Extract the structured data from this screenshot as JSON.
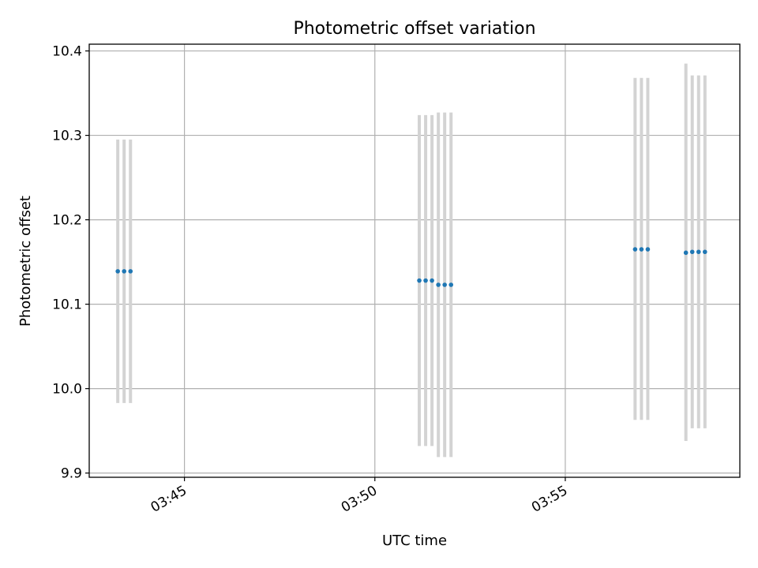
{
  "chart_data": {
    "type": "scatter",
    "title": "Photometric offset variation",
    "xlabel": "UTC time",
    "ylabel": "Photometric offset",
    "grid": true,
    "xlim": [
      "03:42:30",
      "03:59:35"
    ],
    "ylim": [
      9.895,
      10.408
    ],
    "xticks": [
      "03:45",
      "03:50",
      "03:55"
    ],
    "yticks": [
      9.9,
      10.0,
      10.1,
      10.2,
      10.3,
      10.4
    ],
    "colors": {
      "point": "#1f77b4",
      "errorbar": "#d3d3d3",
      "grid": "#b0b0b0"
    },
    "points": [
      {
        "x": "03:43:15",
        "y": 10.139,
        "ylow": 9.983,
        "yhigh": 10.295
      },
      {
        "x": "03:43:25",
        "y": 10.139,
        "ylow": 9.983,
        "yhigh": 10.295
      },
      {
        "x": "03:43:35",
        "y": 10.139,
        "ylow": 9.983,
        "yhigh": 10.295
      },
      {
        "x": "03:51:10",
        "y": 10.128,
        "ylow": 9.932,
        "yhigh": 10.324
      },
      {
        "x": "03:51:20",
        "y": 10.128,
        "ylow": 9.932,
        "yhigh": 10.324
      },
      {
        "x": "03:51:30",
        "y": 10.128,
        "ylow": 9.932,
        "yhigh": 10.324
      },
      {
        "x": "03:51:40",
        "y": 10.123,
        "ylow": 9.919,
        "yhigh": 10.327
      },
      {
        "x": "03:51:50",
        "y": 10.123,
        "ylow": 9.919,
        "yhigh": 10.327
      },
      {
        "x": "03:52:00",
        "y": 10.123,
        "ylow": 9.919,
        "yhigh": 10.327
      },
      {
        "x": "03:56:50",
        "y": 10.165,
        "ylow": 9.963,
        "yhigh": 10.368
      },
      {
        "x": "03:57:00",
        "y": 10.165,
        "ylow": 9.963,
        "yhigh": 10.368
      },
      {
        "x": "03:57:10",
        "y": 10.165,
        "ylow": 9.963,
        "yhigh": 10.368
      },
      {
        "x": "03:58:10",
        "y": 10.161,
        "ylow": 9.938,
        "yhigh": 10.385
      },
      {
        "x": "03:58:20",
        "y": 10.162,
        "ylow": 9.953,
        "yhigh": 10.371
      },
      {
        "x": "03:58:30",
        "y": 10.162,
        "ylow": 9.953,
        "yhigh": 10.371
      },
      {
        "x": "03:58:40",
        "y": 10.162,
        "ylow": 9.953,
        "yhigh": 10.371
      }
    ]
  }
}
